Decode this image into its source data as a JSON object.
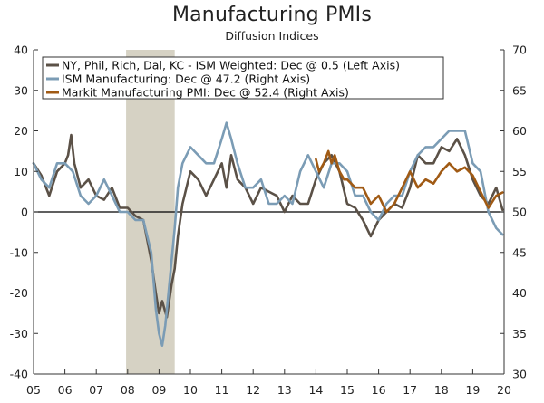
{
  "chart_data": {
    "type": "line",
    "title": "Manufacturing PMIs",
    "subtitle": "Diffusion Indices",
    "xlabel": "",
    "ylabel_left": "",
    "ylabel_right": "",
    "xlim": [
      2005.0,
      2020.0
    ],
    "ylim_left": [
      -40,
      40
    ],
    "ylim_right": [
      30,
      70
    ],
    "left_ticks": [
      "40",
      "30",
      "20",
      "10",
      "0",
      "-10",
      "-20",
      "-30",
      "-40"
    ],
    "left_tick_values": [
      40,
      30,
      20,
      10,
      0,
      -10,
      -20,
      -30,
      -40
    ],
    "right_ticks": [
      "70",
      "65",
      "60",
      "55",
      "50",
      "45",
      "40",
      "35",
      "30"
    ],
    "right_tick_values": [
      70,
      65,
      60,
      55,
      50,
      45,
      40,
      35,
      30
    ],
    "x_ticks": [
      "05",
      "06",
      "07",
      "08",
      "09",
      "10",
      "11",
      "12",
      "13",
      "14",
      "15",
      "16",
      "17",
      "18",
      "19",
      "20"
    ],
    "x_tick_values": [
      2005,
      2006,
      2007,
      2008,
      2009,
      2010,
      2011,
      2012,
      2013,
      2014,
      2015,
      2016,
      2017,
      2018,
      2019,
      2020
    ],
    "recession": {
      "start": 2007.95,
      "end": 2009.5,
      "color": "#d6d2c4"
    },
    "legend_position": "top-left",
    "colors": {
      "axis": "#333333",
      "zero_line": "#000000"
    },
    "series": [
      {
        "name": "NY, Phil, Rich, Dal, KC - ISM Weighted: Dec @ 0.5  (Left Axis)",
        "axis": "left",
        "color": "#5b5147",
        "x": [
          2005.0,
          2005.25,
          2005.5,
          2005.75,
          2006.0,
          2006.1,
          2006.2,
          2006.3,
          2006.5,
          2006.75,
          2007.0,
          2007.25,
          2007.5,
          2007.75,
          2008.0,
          2008.25,
          2008.5,
          2008.75,
          2008.9,
          2009.0,
          2009.1,
          2009.25,
          2009.4,
          2009.5,
          2009.6,
          2009.75,
          2010.0,
          2010.25,
          2010.5,
          2010.75,
          2011.0,
          2011.15,
          2011.3,
          2011.5,
          2011.75,
          2012.0,
          2012.25,
          2012.5,
          2012.75,
          2013.0,
          2013.25,
          2013.5,
          2013.75,
          2014.0,
          2014.25,
          2014.5,
          2014.75,
          2015.0,
          2015.25,
          2015.5,
          2015.75,
          2016.0,
          2016.25,
          2016.5,
          2016.75,
          2017.0,
          2017.25,
          2017.5,
          2017.75,
          2018.0,
          2018.25,
          2018.5,
          2018.75,
          2019.0,
          2019.25,
          2019.5,
          2019.75,
          2019.95
        ],
        "values": [
          12,
          9,
          4,
          10,
          12,
          14,
          19,
          12,
          6,
          8,
          4,
          3,
          6,
          1,
          1,
          -1,
          -2,
          -12,
          -20,
          -25,
          -22,
          -26,
          -18,
          -14,
          -6,
          2,
          10,
          8,
          4,
          8,
          12,
          6,
          14,
          8,
          6,
          2,
          6,
          5,
          4,
          0,
          4,
          2,
          2,
          8,
          12,
          14,
          10,
          2,
          1,
          -2,
          -6,
          -2,
          0,
          2,
          1,
          6,
          14,
          12,
          12,
          16,
          15,
          18,
          14,
          8,
          4,
          2,
          6,
          0.5
        ]
      },
      {
        "name": "ISM Manufacturing: Dec @ 47.2 (Right Axis)",
        "axis": "right",
        "color": "#7b9cb5",
        "x": [
          2005.0,
          2005.25,
          2005.5,
          2005.75,
          2006.0,
          2006.25,
          2006.5,
          2006.75,
          2007.0,
          2007.25,
          2007.5,
          2007.75,
          2008.0,
          2008.25,
          2008.5,
          2008.75,
          2008.9,
          2009.0,
          2009.1,
          2009.2,
          2009.3,
          2009.5,
          2009.6,
          2009.75,
          2010.0,
          2010.25,
          2010.5,
          2010.75,
          2011.0,
          2011.15,
          2011.3,
          2011.5,
          2011.75,
          2012.0,
          2012.25,
          2012.5,
          2012.75,
          2013.0,
          2013.25,
          2013.5,
          2013.75,
          2014.0,
          2014.25,
          2014.5,
          2014.75,
          2015.0,
          2015.25,
          2015.5,
          2015.75,
          2016.0,
          2016.25,
          2016.5,
          2016.75,
          2017.0,
          2017.25,
          2017.5,
          2017.75,
          2018.0,
          2018.25,
          2018.5,
          2018.75,
          2019.0,
          2019.25,
          2019.5,
          2019.75,
          2019.95
        ],
        "values": [
          56,
          54,
          53,
          56,
          56,
          55,
          52,
          51,
          52,
          54,
          52,
          50,
          50,
          49,
          49,
          45,
          38,
          35,
          33.5,
          36,
          40,
          48,
          53,
          56,
          58,
          57,
          56,
          56,
          59,
          61,
          59,
          56,
          53,
          53,
          54,
          51,
          51,
          52,
          51,
          55,
          57,
          55,
          53,
          56,
          56,
          55,
          52,
          52,
          50,
          49,
          51,
          52,
          52,
          55,
          57,
          58,
          58,
          59,
          60,
          60,
          60,
          56,
          55,
          50,
          48,
          47.2
        ]
      },
      {
        "name": "Markit Manufacturing PMI: Dec @ 52.4 (Right Axis)",
        "axis": "right",
        "color": "#a05a14",
        "x": [
          2014.0,
          2014.1,
          2014.25,
          2014.4,
          2014.5,
          2014.6,
          2014.75,
          2014.9,
          2015.0,
          2015.25,
          2015.5,
          2015.75,
          2016.0,
          2016.25,
          2016.5,
          2016.75,
          2017.0,
          2017.25,
          2017.5,
          2017.75,
          2018.0,
          2018.25,
          2018.5,
          2018.75,
          2019.0,
          2019.25,
          2019.5,
          2019.75,
          2019.95
        ],
        "values": [
          56.5,
          55,
          56,
          57.5,
          56,
          57,
          55,
          54,
          54,
          53,
          53,
          51,
          52,
          50,
          51,
          53,
          55,
          53,
          54,
          53.5,
          55,
          56,
          55,
          55.5,
          54.5,
          52.5,
          50.5,
          52,
          52.4
        ]
      }
    ]
  }
}
